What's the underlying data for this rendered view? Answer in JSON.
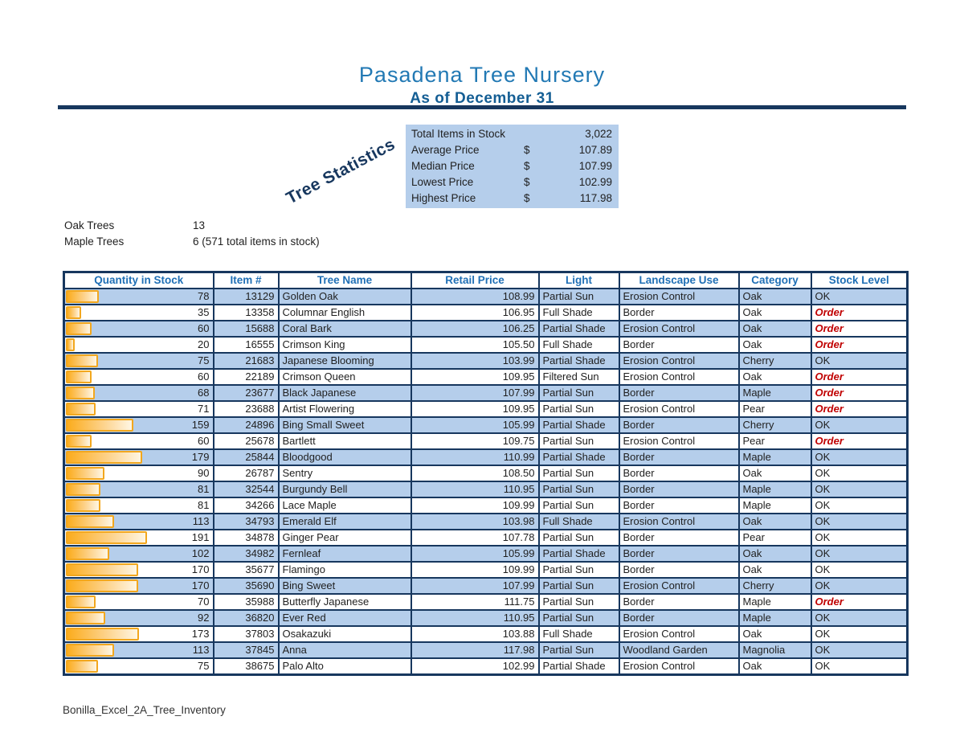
{
  "header": {
    "title": "Pasadena Tree Nursery",
    "subtitle": "As of December 31"
  },
  "stats": {
    "rotated_label": "Tree Statistics",
    "rows": [
      {
        "label": "Total Items in Stock",
        "currency": "",
        "value": "3,022"
      },
      {
        "label": "Average Price",
        "currency": "$",
        "value": "107.89"
      },
      {
        "label": "Median Price",
        "currency": "$",
        "value": "107.99"
      },
      {
        "label": "Lowest Price",
        "currency": "$",
        "value": "102.99"
      },
      {
        "label": "Highest Price",
        "currency": "$",
        "value": "117.98"
      }
    ]
  },
  "summary": [
    {
      "label": "Oak Trees",
      "value": "13"
    },
    {
      "label": "Maple Trees",
      "value": "6 (571 total items in stock)"
    }
  ],
  "table": {
    "headers": [
      "Quantity in Stock",
      "Item #",
      "Tree Name",
      "Retail Price",
      "Light",
      "Landscape Use",
      "Category",
      "Stock Level"
    ],
    "max_quantity": 191,
    "rows": [
      {
        "quantity": 78,
        "item": "13129",
        "name": "Golden Oak",
        "price": "108.99",
        "light": "Partial Sun",
        "landscape": "Erosion Control",
        "category": "Oak",
        "stock": "OK"
      },
      {
        "quantity": 35,
        "item": "13358",
        "name": "Columnar English",
        "price": "106.95",
        "light": "Full Shade",
        "landscape": "Border",
        "category": "Oak",
        "stock": "Order"
      },
      {
        "quantity": 60,
        "item": "15688",
        "name": "Coral Bark",
        "price": "106.25",
        "light": "Partial Shade",
        "landscape": "Erosion Control",
        "category": "Oak",
        "stock": "Order"
      },
      {
        "quantity": 20,
        "item": "16555",
        "name": "Crimson King",
        "price": "105.50",
        "light": "Full Shade",
        "landscape": "Border",
        "category": "Oak",
        "stock": "Order"
      },
      {
        "quantity": 75,
        "item": "21683",
        "name": "Japanese Blooming",
        "price": "103.99",
        "light": "Partial Shade",
        "landscape": "Erosion Control",
        "category": "Cherry",
        "stock": "OK"
      },
      {
        "quantity": 60,
        "item": "22189",
        "name": "Crimson Queen",
        "price": "109.95",
        "light": "Filtered Sun",
        "landscape": "Erosion Control",
        "category": "Oak",
        "stock": "Order"
      },
      {
        "quantity": 68,
        "item": "23677",
        "name": "Black Japanese",
        "price": "107.99",
        "light": "Partial Sun",
        "landscape": "Border",
        "category": "Maple",
        "stock": "Order"
      },
      {
        "quantity": 71,
        "item": "23688",
        "name": "Artist Flowering",
        "price": "109.95",
        "light": "Partial Sun",
        "landscape": "Erosion Control",
        "category": "Pear",
        "stock": "Order"
      },
      {
        "quantity": 159,
        "item": "24896",
        "name": "Bing Small Sweet",
        "price": "105.99",
        "light": "Partial Shade",
        "landscape": "Border",
        "category": "Cherry",
        "stock": "OK"
      },
      {
        "quantity": 60,
        "item": "25678",
        "name": "Bartlett",
        "price": "109.75",
        "light": "Partial Sun",
        "landscape": "Erosion Control",
        "category": "Pear",
        "stock": "Order"
      },
      {
        "quantity": 179,
        "item": "25844",
        "name": "Bloodgood",
        "price": "110.99",
        "light": "Partial Shade",
        "landscape": "Border",
        "category": "Maple",
        "stock": "OK"
      },
      {
        "quantity": 90,
        "item": "26787",
        "name": "Sentry",
        "price": "108.50",
        "light": "Partial Sun",
        "landscape": "Border",
        "category": "Oak",
        "stock": "OK"
      },
      {
        "quantity": 81,
        "item": "32544",
        "name": "Burgundy Bell",
        "price": "110.95",
        "light": "Partial Sun",
        "landscape": "Border",
        "category": "Maple",
        "stock": "OK"
      },
      {
        "quantity": 81,
        "item": "34266",
        "name": "Lace Maple",
        "price": "109.99",
        "light": "Partial Sun",
        "landscape": "Border",
        "category": "Maple",
        "stock": "OK"
      },
      {
        "quantity": 113,
        "item": "34793",
        "name": "Emerald Elf",
        "price": "103.98",
        "light": "Full Shade",
        "landscape": "Erosion Control",
        "category": "Oak",
        "stock": "OK"
      },
      {
        "quantity": 191,
        "item": "34878",
        "name": "Ginger Pear",
        "price": "107.78",
        "light": "Partial Sun",
        "landscape": "Border",
        "category": "Pear",
        "stock": "OK"
      },
      {
        "quantity": 102,
        "item": "34982",
        "name": "Fernleaf",
        "price": "105.99",
        "light": "Partial Shade",
        "landscape": "Border",
        "category": "Oak",
        "stock": "OK"
      },
      {
        "quantity": 170,
        "item": "35677",
        "name": "Flamingo",
        "price": "109.99",
        "light": "Partial Sun",
        "landscape": "Border",
        "category": "Oak",
        "stock": "OK"
      },
      {
        "quantity": 170,
        "item": "35690",
        "name": "Bing Sweet",
        "price": "107.99",
        "light": "Partial Sun",
        "landscape": "Erosion Control",
        "category": "Cherry",
        "stock": "OK"
      },
      {
        "quantity": 70,
        "item": "35988",
        "name": "Butterfly Japanese",
        "price": "111.75",
        "light": "Partial Sun",
        "landscape": "Border",
        "category": "Maple",
        "stock": "Order"
      },
      {
        "quantity": 92,
        "item": "36820",
        "name": "Ever Red",
        "price": "110.95",
        "light": "Partial Sun",
        "landscape": "Border",
        "category": "Maple",
        "stock": "OK"
      },
      {
        "quantity": 173,
        "item": "37803",
        "name": "Osakazuki",
        "price": "103.88",
        "light": "Full Shade",
        "landscape": "Erosion Control",
        "category": "Oak",
        "stock": "OK"
      },
      {
        "quantity": 113,
        "item": "37845",
        "name": "Anna",
        "price": "117.98",
        "light": "Partial Sun",
        "landscape": "Woodland Garden",
        "category": "Magnolia",
        "stock": "OK"
      },
      {
        "quantity": 75,
        "item": "38675",
        "name": "Palo Alto",
        "price": "102.99",
        "light": "Partial Shade",
        "landscape": "Erosion Control",
        "category": "Oak",
        "stock": "OK"
      }
    ]
  },
  "footer": {
    "filename": "Bonilla_Excel_2A_Tree_Inventory"
  },
  "colors": {
    "navy": "#17375E",
    "band-blue": "#B5CEEB",
    "header-blue": "#1F6FB5",
    "title-blue": "#2279B4",
    "subtitle-blue": "#145E94",
    "order-red": "#C00000",
    "bar-orange": "#FBAC1D",
    "bar-border": "#F2A71E"
  }
}
